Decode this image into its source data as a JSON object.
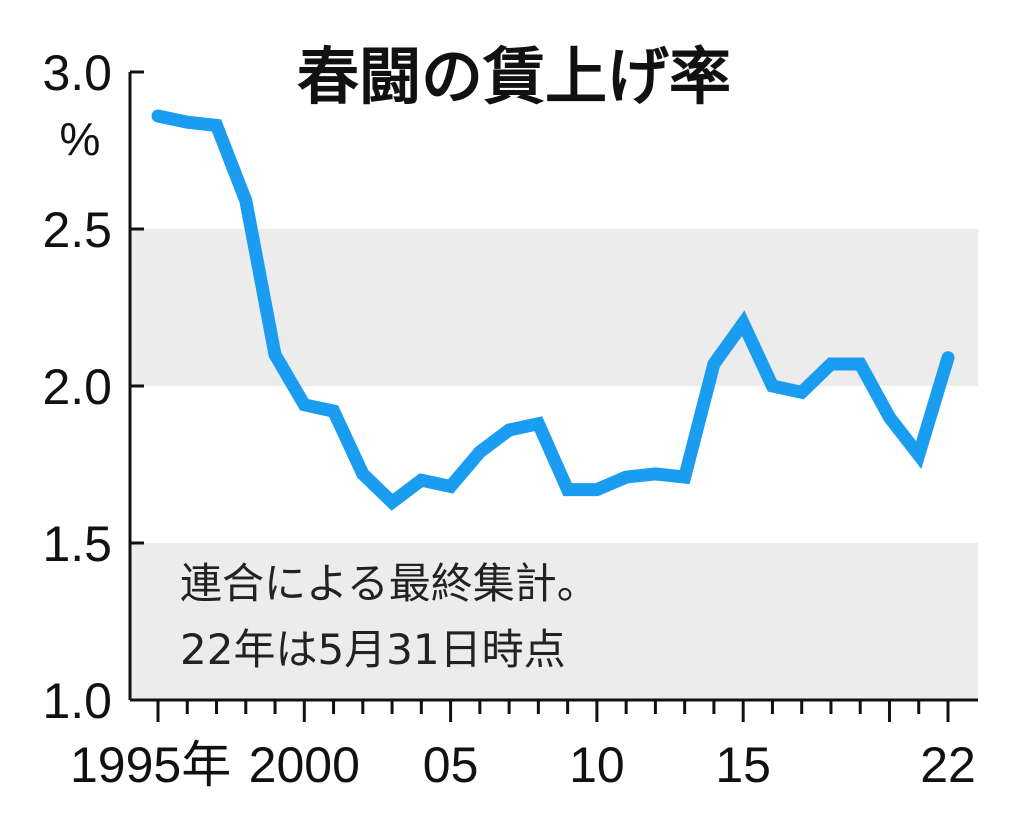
{
  "chart_data": {
    "type": "line",
    "title": "春闘の賃上げ率",
    "ylabel": "%",
    "xlabel": "",
    "ylim": [
      1.0,
      3.0
    ],
    "yticks": [
      "1.0",
      "1.5",
      "2.0",
      "2.5",
      "3.0"
    ],
    "xlim": [
      1995,
      2022
    ],
    "xtick_labels": [
      {
        "x": 1995,
        "label": "1995年"
      },
      {
        "x": 2000,
        "label": "2000"
      },
      {
        "x": 2005,
        "label": "05"
      },
      {
        "x": 2010,
        "label": "10"
      },
      {
        "x": 2015,
        "label": "15"
      },
      {
        "x": 2022,
        "label": "22"
      }
    ],
    "shaded_bands": [
      [
        1.0,
        1.5
      ],
      [
        2.0,
        2.5
      ]
    ],
    "note_lines": [
      "連合による最終集計。",
      "22年は5月31日時点"
    ],
    "line_color": "#1a9cf0",
    "band_color": "#ececec",
    "series": [
      {
        "x": [
          1995,
          1996,
          1997,
          1998,
          1999,
          2000,
          2001,
          2002,
          2003,
          2004,
          2005,
          2006,
          2007,
          2008,
          2009,
          2010,
          2011,
          2012,
          2013,
          2014,
          2015,
          2016,
          2017,
          2018,
          2019,
          2020,
          2021,
          2022
        ],
        "values": [
          2.86,
          2.84,
          2.83,
          2.59,
          2.1,
          1.94,
          1.92,
          1.72,
          1.63,
          1.7,
          1.68,
          1.79,
          1.86,
          1.88,
          1.67,
          1.67,
          1.71,
          1.72,
          1.71,
          2.07,
          2.2,
          2.0,
          1.98,
          2.07,
          2.07,
          1.9,
          1.78,
          2.09
        ]
      }
    ]
  }
}
